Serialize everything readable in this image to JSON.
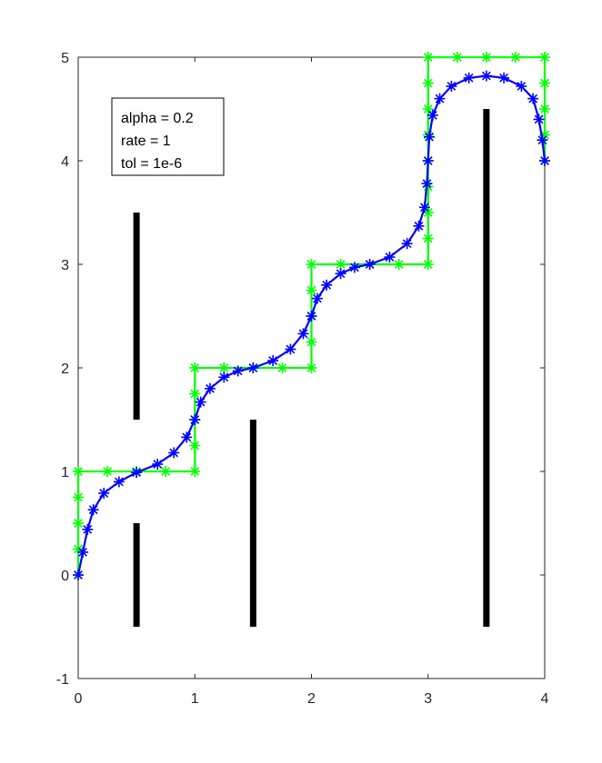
{
  "chart_data": {
    "type": "line",
    "title": "",
    "xlabel": "",
    "ylabel": "",
    "xlim": [
      0,
      4
    ],
    "ylim": [
      -1,
      5
    ],
    "xticks": [
      0,
      1,
      2,
      3,
      4
    ],
    "yticks": [
      -1,
      0,
      1,
      2,
      3,
      4,
      5
    ],
    "grid": false,
    "annotation": [
      "alpha = 0.2",
      "rate = 1",
      "tol = 1e-6"
    ],
    "obstacles": [
      {
        "x": 0.5,
        "y_from": -0.5,
        "y_to": 0.5
      },
      {
        "x": 0.5,
        "y_from": 1.5,
        "y_to": 3.5
      },
      {
        "x": 1.5,
        "y_from": -0.5,
        "y_to": 1.5
      },
      {
        "x": 3.5,
        "y_from": -0.5,
        "y_to": 4.5
      }
    ],
    "series": [
      {
        "color": "#00ff00",
        "marker": "asterisk",
        "points": [
          [
            0,
            0
          ],
          [
            0,
            0.25
          ],
          [
            0,
            0.5
          ],
          [
            0,
            0.75
          ],
          [
            0,
            1
          ],
          [
            0.25,
            1
          ],
          [
            0.5,
            1
          ],
          [
            0.75,
            1
          ],
          [
            1,
            1
          ],
          [
            1,
            1.25
          ],
          [
            1,
            1.5
          ],
          [
            1,
            1.75
          ],
          [
            1,
            2
          ],
          [
            1.25,
            2
          ],
          [
            1.5,
            2
          ],
          [
            1.75,
            2
          ],
          [
            2,
            2
          ],
          [
            2,
            2.25
          ],
          [
            2,
            2.5
          ],
          [
            2,
            2.75
          ],
          [
            2,
            3
          ],
          [
            2.25,
            3
          ],
          [
            2.5,
            3
          ],
          [
            2.75,
            3
          ],
          [
            3,
            3
          ],
          [
            3,
            3.25
          ],
          [
            3,
            3.5
          ],
          [
            3,
            3.75
          ],
          [
            3,
            4
          ],
          [
            3,
            4.25
          ],
          [
            3,
            4.5
          ],
          [
            3,
            4.75
          ],
          [
            3,
            5
          ],
          [
            3.25,
            5
          ],
          [
            3.5,
            5
          ],
          [
            3.75,
            5
          ],
          [
            4,
            5
          ],
          [
            4,
            4.75
          ],
          [
            4,
            4.5
          ],
          [
            4,
            4.25
          ],
          [
            4,
            4
          ]
        ]
      },
      {
        "color": "#0000ff",
        "marker": "asterisk",
        "points": [
          [
            0,
            0
          ],
          [
            0.04,
            0.22
          ],
          [
            0.08,
            0.44
          ],
          [
            0.13,
            0.63
          ],
          [
            0.22,
            0.79
          ],
          [
            0.35,
            0.9
          ],
          [
            0.5,
            0.99
          ],
          [
            0.68,
            1.07
          ],
          [
            0.82,
            1.18
          ],
          [
            0.93,
            1.33
          ],
          [
            1,
            1.5
          ],
          [
            1.05,
            1.67
          ],
          [
            1.13,
            1.8
          ],
          [
            1.25,
            1.91
          ],
          [
            1.37,
            1.97
          ],
          [
            1.5,
            2
          ],
          [
            1.67,
            2.07
          ],
          [
            1.82,
            2.18
          ],
          [
            1.93,
            2.33
          ],
          [
            2,
            2.5
          ],
          [
            2.05,
            2.67
          ],
          [
            2.13,
            2.8
          ],
          [
            2.25,
            2.91
          ],
          [
            2.37,
            2.97
          ],
          [
            2.5,
            3
          ],
          [
            2.67,
            3.07
          ],
          [
            2.82,
            3.2
          ],
          [
            2.92,
            3.37
          ],
          [
            2.97,
            3.55
          ],
          [
            2.99,
            3.78
          ],
          [
            3,
            4
          ],
          [
            3.01,
            4.23
          ],
          [
            3.04,
            4.44
          ],
          [
            3.1,
            4.6
          ],
          [
            3.2,
            4.72
          ],
          [
            3.35,
            4.8
          ],
          [
            3.5,
            4.82
          ],
          [
            3.65,
            4.8
          ],
          [
            3.8,
            4.72
          ],
          [
            3.9,
            4.6
          ],
          [
            3.95,
            4.4
          ],
          [
            3.98,
            4.2
          ],
          [
            4,
            4
          ]
        ]
      }
    ]
  }
}
